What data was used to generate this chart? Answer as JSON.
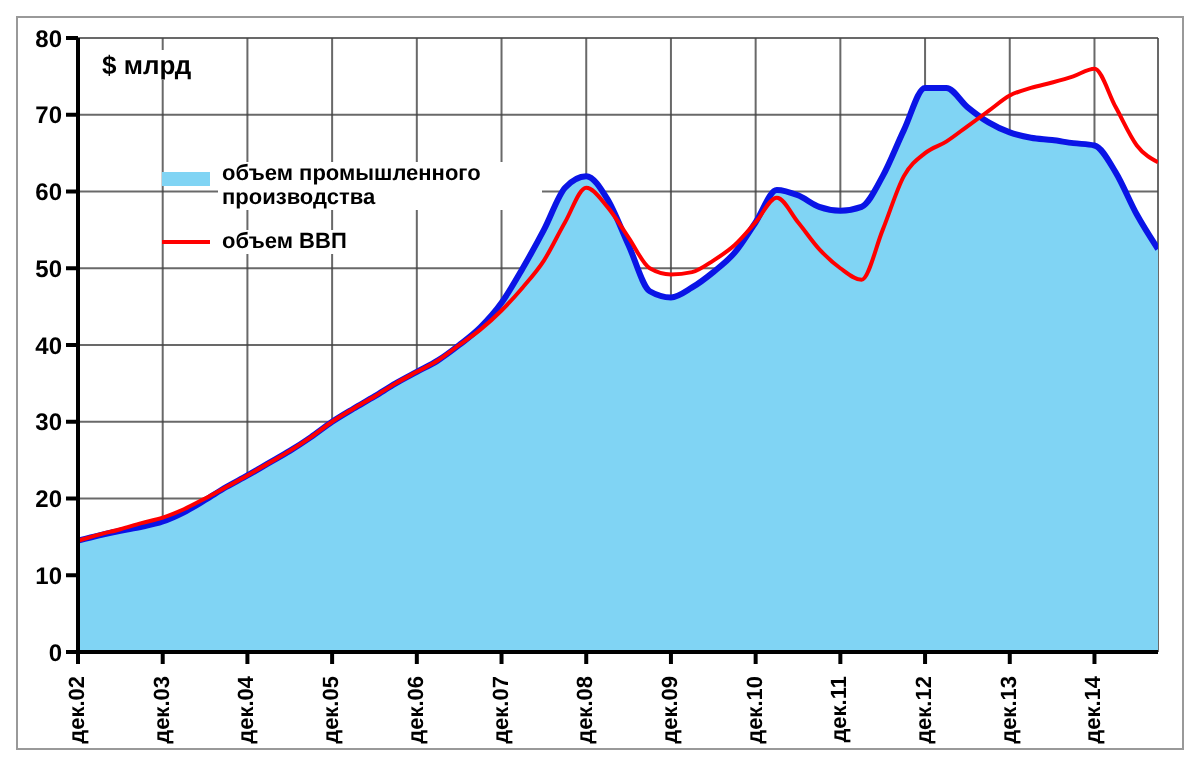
{
  "chart_data": {
    "type": "area",
    "ylabel": "$ млрд",
    "categories": [
      "дек.02",
      null,
      null,
      null,
      "дек.03",
      null,
      null,
      null,
      "дек.04",
      null,
      null,
      null,
      "дек.05",
      null,
      null,
      null,
      "дек.06",
      null,
      null,
      null,
      "дек.07",
      null,
      null,
      null,
      "дек.08",
      null,
      null,
      null,
      "дек.09",
      null,
      null,
      null,
      "дек.10",
      null,
      null,
      null,
      "дек.11",
      null,
      null,
      null,
      "дек.12",
      null,
      null,
      null,
      "дек.13",
      null,
      null,
      null,
      "дек.14",
      null,
      null,
      null
    ],
    "series": [
      {
        "name": "объем промышленного производства",
        "color": "#80d4f4",
        "values": [
          14.5,
          15.2,
          15.8,
          16.3,
          17,
          18.2,
          19.8,
          21.5,
          23,
          24.6,
          26.2,
          28,
          30,
          31.7,
          33.3,
          35,
          36.5,
          38,
          40,
          42.3,
          45.5,
          50,
          55,
          60.5,
          62,
          59,
          53,
          47,
          46.2,
          47.5,
          49.5,
          52,
          56,
          60.2,
          59.5,
          58,
          57.5,
          58,
          62,
          68,
          73.5,
          73.5,
          71,
          69,
          67.7,
          67,
          66.7,
          66.3,
          66,
          62.5,
          57,
          52.5
        ]
      },
      {
        "name": "объем ВВП",
        "type": "line",
        "color": "#ff0000",
        "values": [
          14.5,
          15.3,
          16,
          16.8,
          17.5,
          18.6,
          20,
          21.5,
          23,
          24.6,
          26.2,
          28,
          30,
          31.7,
          33.3,
          35,
          36.5,
          38,
          40,
          42,
          44.5,
          47.5,
          51,
          56,
          60.5,
          58,
          54,
          50,
          49.2,
          49.5,
          51,
          53,
          56,
          59.2,
          56,
          52.5,
          50,
          48.5,
          55,
          62,
          65,
          66.5,
          68.5,
          70.5,
          72.5,
          73.5,
          74.2,
          75,
          76,
          71,
          66,
          63.8
        ]
      }
    ],
    "ylim": [
      0,
      80
    ],
    "yticks": [
      0,
      10,
      20,
      30,
      40,
      50,
      60,
      70,
      80
    ],
    "grid": true,
    "legend": "top left"
  }
}
